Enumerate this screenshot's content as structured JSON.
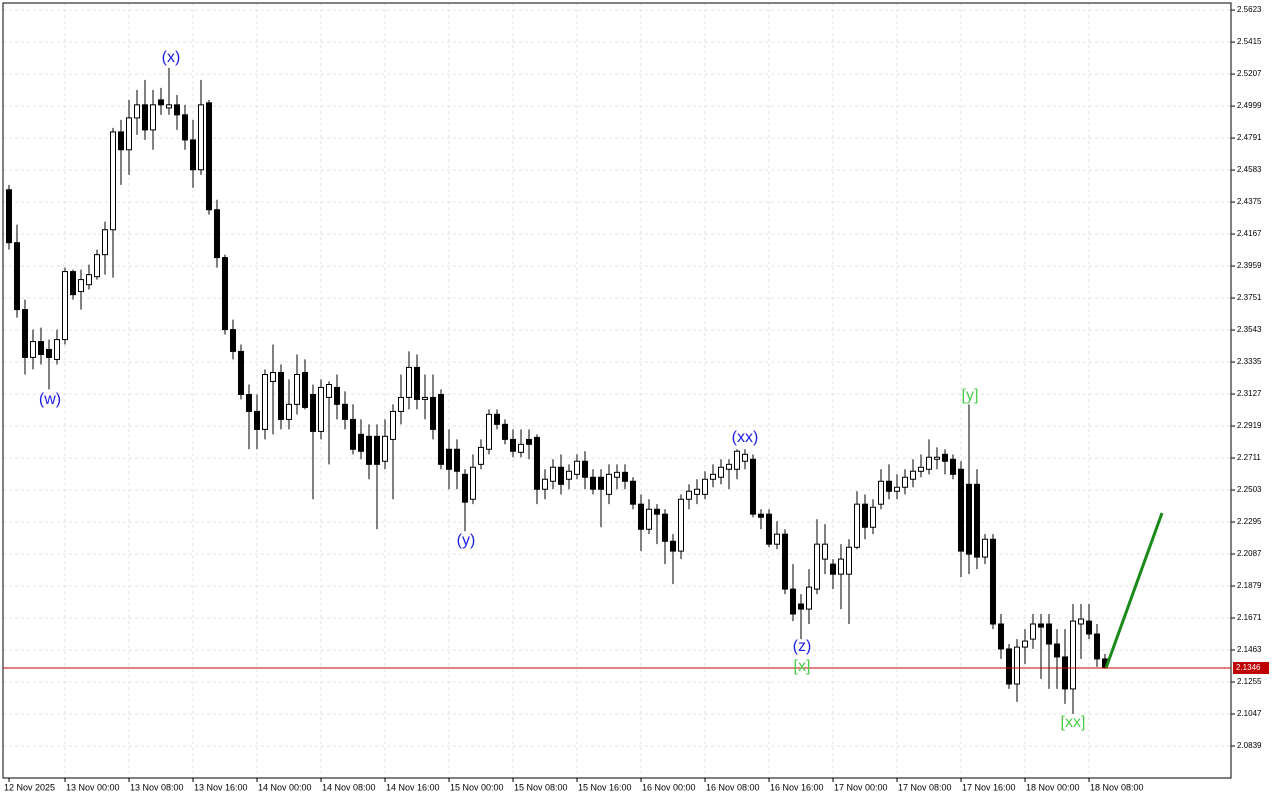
{
  "chart_data": {
    "type": "candlestick",
    "categories": [
      "12 Nov 2025",
      null,
      null,
      null,
      null,
      null,
      null,
      "13 Nov 00:00",
      null,
      null,
      null,
      null,
      null,
      null,
      null,
      "13 Nov 08:00",
      null,
      null,
      null,
      null,
      null,
      null,
      null,
      "13 Nov 16:00",
      null,
      null,
      null,
      null,
      null,
      null,
      null,
      "14 Nov 00:00",
      null,
      null,
      null,
      null,
      null,
      null,
      null,
      "14 Nov 08:00",
      null,
      null,
      null,
      null,
      null,
      null,
      null,
      "14 Nov 16:00",
      null,
      null,
      null,
      null,
      null,
      null,
      null,
      "15 Nov 00:00",
      null,
      null,
      null,
      null,
      null,
      null,
      null,
      "15 Nov 08:00",
      null,
      null,
      null,
      null,
      null,
      null,
      null,
      "15 Nov 16:00",
      null,
      null,
      null,
      null,
      null,
      null,
      null,
      "16 Nov 00:00",
      null,
      null,
      null,
      null,
      null,
      null,
      null,
      "16 Nov 08:00",
      null,
      null,
      null,
      null,
      null,
      null,
      null,
      "16 Nov 16:00",
      null,
      null,
      null,
      null,
      null,
      null,
      null,
      "17 Nov 00:00",
      null,
      null,
      null,
      null,
      null,
      null,
      null,
      "17 Nov 08:00",
      null,
      null,
      null,
      null,
      null,
      null,
      null,
      "17 Nov 16:00",
      null,
      null,
      null,
      null,
      null,
      null,
      null,
      "18 Nov 00:00",
      null,
      null,
      null,
      null,
      null,
      null,
      null,
      "18 Nov 08:00",
      null,
      null
    ],
    "open": [
      2.4455,
      2.4111,
      2.3676,
      2.3365,
      2.3468,
      2.3417,
      2.3352,
      2.3481,
      2.3923,
      2.3793,
      2.3838,
      2.389,
      2.4033,
      2.4195,
      2.4831,
      2.4715,
      2.4922,
      2.5007,
      2.4844,
      2.5039,
      2.4987,
      2.5007,
      2.4942,
      2.4779,
      2.4585,
      2.502,
      2.4325,
      2.4014,
      2.3546,
      2.3404,
      2.3124,
      2.3014,
      2.2897,
      2.3209,
      2.3267,
      2.2962,
      2.306,
      2.3267,
      2.3124,
      2.2884,
      2.3105,
      2.317,
      2.306,
      2.2962,
      2.2865,
      2.2852,
      2.2852,
      2.269,
      2.2832,
      2.3014,
      2.3105,
      2.33,
      2.3092,
      2.3105,
      2.3124,
      2.2768,
      2.2768,
      2.2605,
      2.2443,
      2.267,
      2.2768,
      2.2995,
      2.293,
      2.2832,
      2.2748,
      2.2832,
      2.2845,
      2.2508,
      2.256,
      2.2651,
      2.2573,
      2.2605,
      2.269,
      2.2586,
      2.2586,
      2.2475,
      2.2586,
      2.2618,
      2.256,
      2.2411,
      2.2248,
      2.2378,
      2.2346,
      2.217,
      2.2106,
      2.2443,
      2.2475,
      2.2475,
      2.2573,
      2.2586,
      2.2638,
      2.2638,
      2.269,
      2.2703,
      2.2346,
      2.2346,
      2.2151,
      2.2216,
      2.1859,
      2.1762,
      2.1729,
      2.1859,
      2.2054,
      2.2021,
      2.1956,
      2.1956,
      2.2131,
      2.2411,
      2.2261,
      2.2411,
      2.256,
      2.2495,
      2.2521,
      2.2573,
      2.2625,
      2.2638,
      2.2703,
      2.2735,
      2.2703,
      2.2638,
      2.254,
      2.254,
      2.2067,
      2.2183,
      2.1632,
      2.147,
      2.1242,
      2.1482,
      2.1534,
      2.1632,
      2.1632,
      2.1502,
      2.1418,
      2.121,
      2.1632,
      2.1651,
      2.1567,
      2.1405
    ],
    "high": [
      2.4487,
      2.4228,
      2.3741,
      2.3546,
      2.3559,
      2.3481,
      2.3546,
      2.3949,
      2.3936,
      2.3936,
      2.3968,
      2.4066,
      2.4247,
      2.4857,
      2.4909,
      2.5039,
      2.5104,
      2.5169,
      2.5104,
      2.5117,
      2.5247,
      2.5071,
      2.5007,
      2.4909,
      2.5169,
      2.5039,
      2.439,
      2.4033,
      2.3611,
      2.3449,
      2.3189,
      2.3124,
      2.3287,
      2.3449,
      2.3319,
      2.3222,
      2.3384,
      2.3352,
      2.3189,
      2.3222,
      2.3209,
      2.3254,
      2.3144,
      2.306,
      2.2962,
      2.293,
      2.293,
      2.2962,
      2.306,
      2.3254,
      2.3404,
      2.3384,
      2.3254,
      2.3254,
      2.3157,
      2.2897,
      2.2832,
      2.2638,
      2.2735,
      2.2832,
      2.3027,
      2.3027,
      2.2962,
      2.2897,
      2.2897,
      2.2897,
      2.2865,
      2.2638,
      2.2703,
      2.2735,
      2.267,
      2.2735,
      2.2755,
      2.2638,
      2.2638,
      2.267,
      2.267,
      2.267,
      2.2586,
      2.2475,
      2.2443,
      2.2411,
      2.2378,
      2.2216,
      2.2475,
      2.254,
      2.2573,
      2.2625,
      2.267,
      2.2703,
      2.2703,
      2.2768,
      2.2768,
      2.2735,
      2.2378,
      2.2378,
      2.23,
      2.2248,
      2.2021,
      2.1826,
      2.1989,
      2.2313,
      2.2281,
      2.2054,
      2.2151,
      2.2183,
      2.2495,
      2.2475,
      2.2443,
      2.2638,
      2.267,
      2.2605,
      2.2638,
      2.2703,
      2.2735,
      2.2832,
      2.278,
      2.2768,
      2.2735,
      2.269,
      2.306,
      2.2638,
      2.2216,
      2.2216,
      2.1697,
      2.1502,
      2.1534,
      2.1599,
      2.1697,
      2.1697,
      2.1697,
      2.1599,
      2.1599,
      2.1762,
      2.1762,
      2.1762,
      2.1632,
      2.1437
    ],
    "low": [
      2.4066,
      2.3624,
      2.3254,
      2.3287,
      2.3319,
      2.3157,
      2.3319,
      2.3449,
      2.3741,
      2.3676,
      2.3806,
      2.3871,
      2.3903,
      2.3884,
      2.4487,
      2.4552,
      2.4812,
      2.4779,
      2.4715,
      2.4942,
      2.4942,
      2.4844,
      2.4715,
      2.4468,
      2.4552,
      2.4293,
      2.3949,
      2.3514,
      2.3352,
      2.3092,
      2.2768,
      2.2768,
      2.2832,
      2.2865,
      2.2897,
      2.2897,
      2.2995,
      2.3027,
      2.2443,
      2.2832,
      2.267,
      2.2962,
      2.2897,
      2.2735,
      2.2703,
      2.2573,
      2.2248,
      2.2638,
      2.2443,
      2.293,
      2.3027,
      2.3027,
      2.2962,
      2.2832,
      2.2638,
      2.2508,
      2.2508,
      2.2235,
      2.2411,
      2.2638,
      2.2735,
      2.2897,
      2.28,
      2.2716,
      2.2716,
      2.2703,
      2.2411,
      2.2443,
      2.2508,
      2.2475,
      2.2508,
      2.2573,
      2.2508,
      2.2475,
      2.2261,
      2.2411,
      2.2508,
      2.2508,
      2.2378,
      2.2106,
      2.2216,
      2.2151,
      2.2021,
      2.1891,
      2.2054,
      2.2378,
      2.2411,
      2.2443,
      2.2521,
      2.254,
      2.2508,
      2.2573,
      2.2638,
      2.2326,
      2.2248,
      2.2131,
      2.2119,
      2.1826,
      2.1651,
      2.1534,
      2.1632,
      2.1826,
      2.1956,
      2.1859,
      2.1729,
      2.1632,
      2.2119,
      2.2183,
      2.2216,
      2.2378,
      2.2443,
      2.2443,
      2.2475,
      2.2521,
      2.2586,
      2.2605,
      2.2638,
      2.2605,
      2.2573,
      2.1937,
      2.1956,
      2.1989,
      2.2021,
      2.1599,
      2.1405,
      2.121,
      2.1126,
      2.1372,
      2.147,
      2.1275,
      2.121,
      2.121,
      2.1113,
      2.1048,
      2.1405,
      2.1534,
      2.1353,
      2.134
    ],
    "close": [
      2.4111,
      2.3676,
      2.3365,
      2.3468,
      2.3384,
      2.3365,
      2.3481,
      2.3923,
      2.3773,
      2.3871,
      2.3903,
      2.4033,
      2.4195,
      2.4831,
      2.4715,
      2.4922,
      2.5007,
      2.4844,
      2.5007,
      2.5007,
      2.5007,
      2.4942,
      2.4779,
      2.4585,
      2.5007,
      2.4325,
      2.4014,
      2.3546,
      2.3404,
      2.3124,
      2.3014,
      2.2897,
      2.3254,
      2.3267,
      2.2962,
      2.306,
      2.3254,
      2.304,
      2.2884,
      2.317,
      2.3189,
      2.306,
      2.2962,
      2.2768,
      2.2755,
      2.267,
      2.267,
      2.2852,
      2.3014,
      2.3105,
      2.33,
      2.3092,
      2.3105,
      2.2897,
      2.267,
      2.2638,
      2.2625,
      2.2424,
      2.2651,
      2.278,
      2.2995,
      2.293,
      2.2832,
      2.2755,
      2.28,
      2.28,
      2.2508,
      2.2573,
      2.2651,
      2.254,
      2.2625,
      2.269,
      2.2586,
      2.2508,
      2.2508,
      2.2605,
      2.2618,
      2.256,
      2.2411,
      2.2248,
      2.2378,
      2.2346,
      2.217,
      2.2106,
      2.2443,
      2.2495,
      2.2508,
      2.2573,
      2.2605,
      2.2651,
      2.267,
      2.2755,
      2.2735,
      2.2346,
      2.2326,
      2.2151,
      2.2216,
      2.1859,
      2.1697,
      2.1729,
      2.1872,
      2.2151,
      2.2151,
      2.1956,
      2.2054,
      2.2131,
      2.2411,
      2.2261,
      2.2391,
      2.256,
      2.2495,
      2.2521,
      2.2586,
      2.2625,
      2.2651,
      2.2716,
      2.2716,
      2.269,
      2.2605,
      2.2106,
      2.2086,
      2.2067,
      2.2183,
      2.1632,
      2.147,
      2.1242,
      2.1482,
      2.1521,
      2.1632,
      2.1612,
      2.1502,
      2.1418,
      2.121,
      2.1651,
      2.1664,
      2.1567,
      2.1405,
      2.1346
    ],
    "up_color": "#ffffff",
    "down_color": "#000000",
    "outline_color": "#000000",
    "ylim": [
      2.0631,
      2.5669
    ],
    "yticks": [
      2.5623,
      2.5415,
      2.5207,
      2.4999,
      2.4791,
      2.4583,
      2.4375,
      2.4167,
      2.3959,
      2.3751,
      2.3543,
      2.3335,
      2.3127,
      2.2919,
      2.2711,
      2.2503,
      2.2295,
      2.2087,
      2.1879,
      2.1671,
      2.1463,
      2.1255,
      2.1047,
      2.0839
    ],
    "grid": true,
    "current_price": {
      "value": 2.1346,
      "color": "#c00000"
    },
    "annotations": [
      {
        "text": "(w)",
        "color": "#1e1ee6"
      },
      {
        "text": "(x)",
        "color": "#1e1ee6"
      },
      {
        "text": "(y)",
        "color": "#1e1ee6"
      },
      {
        "text": "(xx)",
        "color": "#1e1ee6"
      },
      {
        "text": "(z)",
        "color": "#1e1ee6"
      },
      {
        "text": "[x]",
        "color": "#4ccc4c"
      },
      {
        "text": "[y]",
        "color": "#4ccc4c"
      },
      {
        "text": "[xx]",
        "color": "#4ccc4c"
      }
    ]
  }
}
